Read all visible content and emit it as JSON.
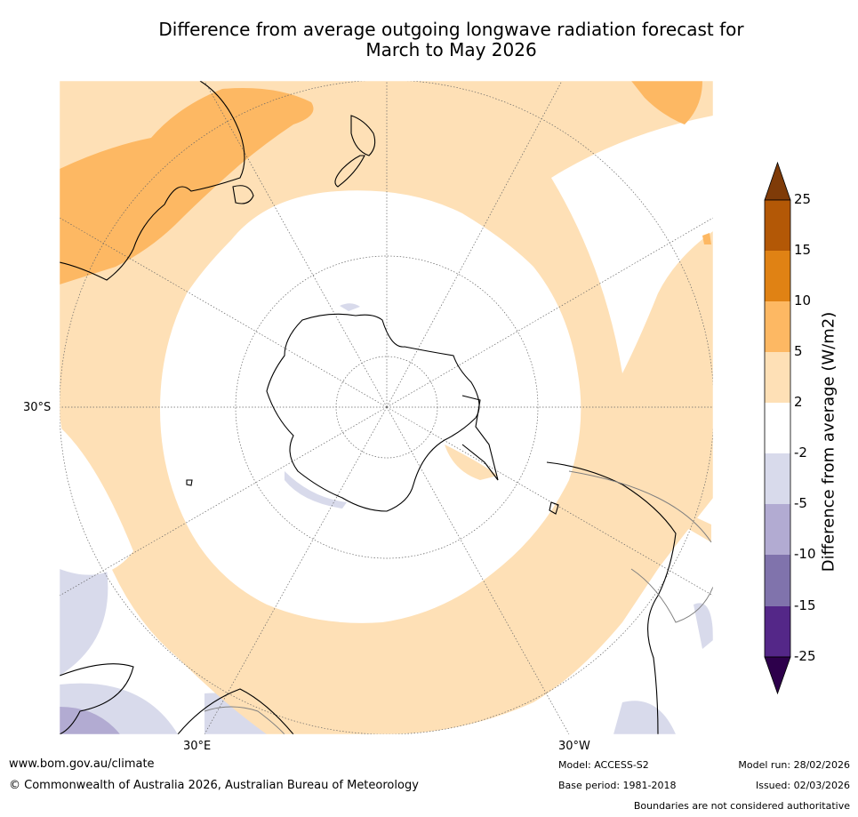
{
  "title": {
    "line1": "Difference from average outgoing longwave radiation forecast for",
    "line2": "March to May 2026"
  },
  "map": {
    "projection": "south-polar-stereographic",
    "grid_labels": {
      "lat": "30°S",
      "lon_left": "30°E",
      "lon_right": "30°W"
    }
  },
  "colorbar": {
    "label": "Difference from average (W/m2)",
    "ticks": [
      "25",
      "15",
      "10",
      "5",
      "2",
      "-2",
      "-5",
      "-10",
      "-15",
      "-25"
    ],
    "colors": {
      "above_25": "#7f3b08",
      "15_25": "#b35806",
      "10_15": "#e08214",
      "5_10": "#fdb863",
      "2_5": "#fee0b6",
      "neutral": "#ffffff",
      "neg2_neg5": "#d8daeb",
      "neg5_neg10": "#b2abd2",
      "neg10_neg15": "#8073ac",
      "neg15_neg25": "#542788",
      "below_neg25": "#2d004b"
    }
  },
  "footer": {
    "website": "www.bom.gov.au/climate",
    "copyright": "© Commonwealth of Australia 2026, Australian Bureau of Meteorology",
    "model": "Model: ACCESS-S2",
    "base_period": "Base period: 1981-2018",
    "model_run": "Model run: 28/02/2026",
    "issued": "Issued: 02/03/2026",
    "disclaimer": "Boundaries are not considered authoritative"
  }
}
